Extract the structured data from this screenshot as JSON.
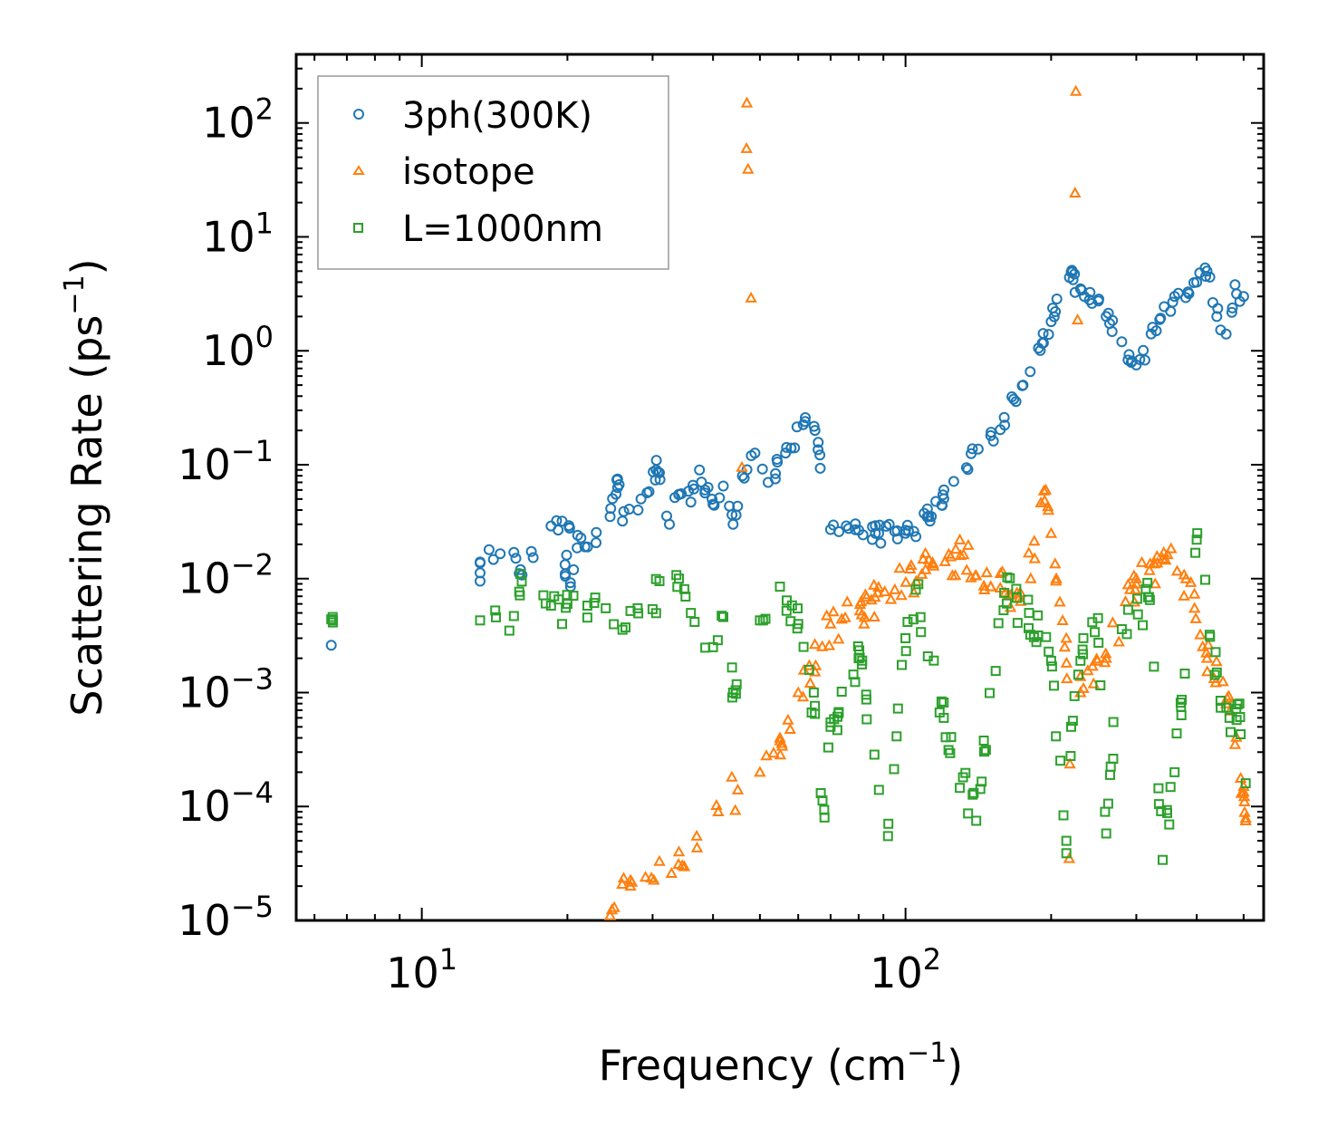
{
  "chart_data": {
    "type": "scatter",
    "xlabel": "Frequency (cm",
    "xlabel_sup": "−1",
    "xlabel_end": ")",
    "ylabel": "Scattering Rate (ps",
    "ylabel_sup": "−1",
    "ylabel_end": ")",
    "xscale": "log",
    "yscale": "log",
    "xlim": [
      5.5,
      550
    ],
    "ylim": [
      1e-05,
      400
    ],
    "x_ticks": [
      {
        "value": 10,
        "base": "10",
        "exp": "1"
      },
      {
        "value": 100,
        "base": "10",
        "exp": "2"
      }
    ],
    "y_ticks": [
      {
        "value": 100,
        "base": "10",
        "exp": "2"
      },
      {
        "value": 10,
        "base": "10",
        "exp": "1"
      },
      {
        "value": 1,
        "base": "10",
        "exp": "0"
      },
      {
        "value": 0.1,
        "base": "10",
        "exp": "−1"
      },
      {
        "value": 0.01,
        "base": "10",
        "exp": "−2"
      },
      {
        "value": 0.001,
        "base": "10",
        "exp": "−3"
      },
      {
        "value": 0.0001,
        "base": "10",
        "exp": "−4"
      },
      {
        "value": 1e-05,
        "base": "10",
        "exp": "−5"
      }
    ],
    "legend_position": "top-left",
    "series": [
      {
        "name": "3ph(300K)",
        "marker": "circle",
        "color": "#1f77b4",
        "points": [
          [
            6.5,
            0.0026
          ],
          [
            13.2,
            0.0095
          ],
          [
            13.2,
            0.014
          ],
          [
            15.5,
            0.017
          ],
          [
            16.0,
            0.012
          ],
          [
            18.5,
            0.029
          ],
          [
            19.5,
            0.032
          ],
          [
            20.2,
            0.028
          ],
          [
            21.0,
            0.024
          ],
          [
            22.0,
            0.019
          ],
          [
            19.8,
            0.0105
          ],
          [
            20.3,
            0.0085
          ],
          [
            24.5,
            0.035
          ],
          [
            25.2,
            0.055
          ],
          [
            25.4,
            0.075
          ],
          [
            26.0,
            0.032
          ],
          [
            28.0,
            0.04
          ],
          [
            29.5,
            0.058
          ],
          [
            30.5,
            0.09
          ],
          [
            31.0,
            0.085
          ],
          [
            32.5,
            0.03
          ],
          [
            34.0,
            0.055
          ],
          [
            36.0,
            0.047
          ],
          [
            37.5,
            0.09
          ],
          [
            38.5,
            0.06
          ],
          [
            40.0,
            0.045
          ],
          [
            42.0,
            0.065
          ],
          [
            44.0,
            0.03
          ],
          [
            46.0,
            0.08
          ],
          [
            48.0,
            0.12
          ],
          [
            52.0,
            0.07
          ],
          [
            58.0,
            0.14
          ],
          [
            62.0,
            0.24
          ],
          [
            65.0,
            0.2
          ],
          [
            70.0,
            0.027
          ],
          [
            88.0,
            0.025
          ],
          [
            95.0,
            0.026
          ],
          [
            100.0,
            0.025
          ],
          [
            104.0,
            0.026
          ],
          [
            150.0,
            0.18
          ],
          [
            160.0,
            0.26
          ],
          [
            175.0,
            0.5
          ],
          [
            200.0,
            1.8
          ],
          [
            220.0,
            4.9
          ],
          [
            222.0,
            4.2
          ],
          [
            230.0,
            3.5
          ],
          [
            240.0,
            2.8
          ],
          [
            260.0,
            2.0
          ],
          [
            280.0,
            1.2
          ],
          [
            300.0,
            0.75
          ],
          [
            330.0,
            1.5
          ],
          [
            360.0,
            3.0
          ],
          [
            400.0,
            4.0
          ],
          [
            420.0,
            5.0
          ],
          [
            440.0,
            2.0
          ],
          [
            460.0,
            1.4
          ],
          [
            480.0,
            3.8
          ],
          [
            500.0,
            3.0
          ]
        ]
      },
      {
        "name": "isotope",
        "marker": "triangle",
        "color": "#ff7f0e",
        "points": [
          [
            47.0,
            150
          ],
          [
            225.0,
            190
          ],
          [
            24.5,
            1.1e-05
          ],
          [
            25.0,
            1.3e-05
          ],
          [
            27.0,
            2e-05
          ],
          [
            29.0,
            2.4e-05
          ],
          [
            31.0,
            3.3e-05
          ],
          [
            34.0,
            4e-05
          ],
          [
            37.0,
            5.5e-05
          ],
          [
            41.0,
            9e-05
          ],
          [
            45.0,
            0.00014
          ],
          [
            50.0,
            0.0002
          ],
          [
            55.0,
            0.0004
          ],
          [
            60.0,
            0.001
          ],
          [
            70.0,
            0.004
          ],
          [
            85.0,
            0.0065
          ],
          [
            95.0,
            0.008
          ],
          [
            110.0,
            0.012
          ],
          [
            130.0,
            0.016
          ],
          [
            150.0,
            0.0085
          ],
          [
            170.0,
            0.0075
          ],
          [
            185.0,
            0.015
          ],
          [
            195.0,
            0.06
          ],
          [
            200.0,
            0.025
          ],
          [
            205.0,
            0.01
          ],
          [
            215.0,
            0.003
          ],
          [
            218.0,
            3.5e-05
          ],
          [
            230.0,
            0.001
          ],
          [
            260.0,
            0.002
          ],
          [
            300.0,
            0.009
          ],
          [
            340.0,
            0.015
          ],
          [
            380.0,
            0.01
          ],
          [
            420.0,
            0.002
          ],
          [
            460.0,
            0.0008
          ],
          [
            480.0,
            0.00035
          ],
          [
            500.0,
            0.00015
          ],
          [
            502.0,
            0.00011
          ],
          [
            505.0,
            7.5e-05
          ]
        ]
      },
      {
        "name": "L=1000nm",
        "marker": "square",
        "color": "#2ca02c",
        "points": [
          [
            6.5,
            0.0044
          ],
          [
            6.55,
            0.0043
          ],
          [
            13.2,
            0.0043
          ],
          [
            15.5,
            0.0047
          ],
          [
            16.0,
            0.011
          ],
          [
            18.5,
            0.0058
          ],
          [
            19.5,
            0.004
          ],
          [
            20.0,
            0.006
          ],
          [
            22.0,
            0.0058
          ],
          [
            24.0,
            0.0055
          ],
          [
            27.0,
            0.0052
          ],
          [
            30.0,
            0.0054
          ],
          [
            31.0,
            0.0095
          ],
          [
            34.0,
            0.01
          ],
          [
            36.0,
            0.005
          ],
          [
            40.0,
            0.0025
          ],
          [
            42.0,
            0.0046
          ],
          [
            44.0,
            0.001
          ],
          [
            50.0,
            0.0043
          ],
          [
            55.0,
            0.0085
          ],
          [
            60.0,
            0.004
          ],
          [
            65.0,
            0.00065
          ],
          [
            68.0,
            8e-05
          ],
          [
            70.0,
            0.0005
          ],
          [
            80.0,
            0.002
          ],
          [
            92.0,
            5.5e-05
          ],
          [
            100.0,
            0.003
          ],
          [
            105.0,
            0.008
          ],
          [
            120.0,
            0.0006
          ],
          [
            140.0,
            7.5e-05
          ],
          [
            160.0,
            0.0075
          ],
          [
            180.0,
            0.005
          ],
          [
            200.0,
            0.0019
          ],
          [
            215.0,
            5e-05
          ],
          [
            220.0,
            0.0005
          ],
          [
            230.0,
            0.0019
          ],
          [
            250.0,
            0.0045
          ],
          [
            260.0,
            5.8e-05
          ],
          [
            280.0,
            0.0036
          ],
          [
            320.0,
            0.0065
          ],
          [
            340.0,
            3.4e-05
          ],
          [
            360.0,
            0.0002
          ],
          [
            400.0,
            0.022
          ],
          [
            440.0,
            0.0015
          ],
          [
            470.0,
            0.00045
          ],
          [
            490.0,
            0.0008
          ],
          [
            505.0,
            0.00016
          ]
        ]
      }
    ]
  }
}
